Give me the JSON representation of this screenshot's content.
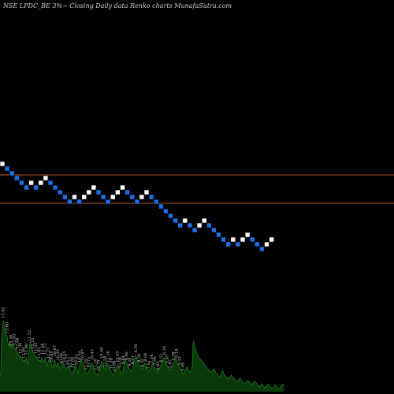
{
  "title": "NSE LPDC_BE 3%~  Closing Daily data  Renko  charts MunafaSutra.com",
  "colors": {
    "background": "#000000",
    "up_brick": "#ffffff",
    "down_brick": "#1e6fe6",
    "brick_border": "#000000",
    "level_line": "#b35a14",
    "volume_fill": "#0a3a0a",
    "volume_line": "#1f7a1f",
    "text": "#cfcfcf"
  },
  "chart_data": [
    {
      "type": "renko",
      "title": "NSE LPDC_BE 3%~  Closing Daily data  Renko  charts MunafaSutra.com",
      "xlabel": "",
      "ylabel": "",
      "grid": false,
      "brick_size": "3%",
      "reference_lines": 2,
      "bricks": [
        {
          "i": 0,
          "level": 26,
          "dir": "up"
        },
        {
          "i": 1,
          "level": 25,
          "dir": "down"
        },
        {
          "i": 2,
          "level": 24,
          "dir": "down"
        },
        {
          "i": 3,
          "level": 23,
          "dir": "down"
        },
        {
          "i": 4,
          "level": 22,
          "dir": "down"
        },
        {
          "i": 5,
          "level": 21,
          "dir": "down"
        },
        {
          "i": 6,
          "level": 22,
          "dir": "up"
        },
        {
          "i": 7,
          "level": 21,
          "dir": "down"
        },
        {
          "i": 8,
          "level": 22,
          "dir": "up"
        },
        {
          "i": 9,
          "level": 23,
          "dir": "up"
        },
        {
          "i": 10,
          "level": 22,
          "dir": "down"
        },
        {
          "i": 11,
          "level": 21,
          "dir": "down"
        },
        {
          "i": 12,
          "level": 20,
          "dir": "down"
        },
        {
          "i": 13,
          "level": 19,
          "dir": "down"
        },
        {
          "i": 14,
          "level": 18,
          "dir": "down"
        },
        {
          "i": 15,
          "level": 19,
          "dir": "up"
        },
        {
          "i": 16,
          "level": 18,
          "dir": "down"
        },
        {
          "i": 17,
          "level": 19,
          "dir": "up"
        },
        {
          "i": 18,
          "level": 20,
          "dir": "up"
        },
        {
          "i": 19,
          "level": 21,
          "dir": "up"
        },
        {
          "i": 20,
          "level": 20,
          "dir": "down"
        },
        {
          "i": 21,
          "level": 19,
          "dir": "down"
        },
        {
          "i": 22,
          "level": 18,
          "dir": "down"
        },
        {
          "i": 23,
          "level": 19,
          "dir": "up"
        },
        {
          "i": 24,
          "level": 20,
          "dir": "up"
        },
        {
          "i": 25,
          "level": 21,
          "dir": "up"
        },
        {
          "i": 26,
          "level": 20,
          "dir": "down"
        },
        {
          "i": 27,
          "level": 19,
          "dir": "down"
        },
        {
          "i": 28,
          "level": 18,
          "dir": "down"
        },
        {
          "i": 29,
          "level": 19,
          "dir": "up"
        },
        {
          "i": 30,
          "level": 20,
          "dir": "up"
        },
        {
          "i": 31,
          "level": 19,
          "dir": "down"
        },
        {
          "i": 32,
          "level": 18,
          "dir": "down"
        },
        {
          "i": 33,
          "level": 17,
          "dir": "down"
        },
        {
          "i": 34,
          "level": 16,
          "dir": "down"
        },
        {
          "i": 35,
          "level": 15,
          "dir": "down"
        },
        {
          "i": 36,
          "level": 14,
          "dir": "down"
        },
        {
          "i": 37,
          "level": 13,
          "dir": "down"
        },
        {
          "i": 38,
          "level": 14,
          "dir": "up"
        },
        {
          "i": 39,
          "level": 13,
          "dir": "down"
        },
        {
          "i": 40,
          "level": 12,
          "dir": "down"
        },
        {
          "i": 41,
          "level": 13,
          "dir": "up"
        },
        {
          "i": 42,
          "level": 14,
          "dir": "up"
        },
        {
          "i": 43,
          "level": 13,
          "dir": "down"
        },
        {
          "i": 44,
          "level": 12,
          "dir": "down"
        },
        {
          "i": 45,
          "level": 11,
          "dir": "down"
        },
        {
          "i": 46,
          "level": 10,
          "dir": "down"
        },
        {
          "i": 47,
          "level": 9,
          "dir": "down"
        },
        {
          "i": 48,
          "level": 10,
          "dir": "up"
        },
        {
          "i": 49,
          "level": 9,
          "dir": "down"
        },
        {
          "i": 50,
          "level": 10,
          "dir": "up"
        },
        {
          "i": 51,
          "level": 11,
          "dir": "up"
        },
        {
          "i": 52,
          "level": 10,
          "dir": "down"
        },
        {
          "i": 53,
          "level": 9,
          "dir": "down"
        },
        {
          "i": 54,
          "level": 8,
          "dir": "down"
        },
        {
          "i": 55,
          "level": 9,
          "dir": "up"
        },
        {
          "i": 56,
          "level": 10,
          "dir": "up"
        }
      ],
      "volume": [
        17,
        19,
        55,
        64,
        74,
        72,
        69,
        61,
        60,
        58,
        52,
        48,
        50,
        52,
        45,
        48,
        47,
        50,
        46,
        45,
        44,
        46,
        42,
        40,
        38,
        36,
        37,
        35,
        34,
        33,
        32,
        33,
        31,
        34,
        36,
        30,
        28,
        40,
        50,
        52,
        48,
        45,
        42,
        40,
        38,
        36,
        37,
        35,
        34,
        33,
        32,
        33,
        31,
        34,
        36,
        32,
        30,
        32,
        36,
        28,
        26,
        30,
        32,
        34,
        36,
        30,
        28,
        26,
        24,
        30,
        34,
        28,
        26,
        27,
        30,
        28,
        25,
        24,
        26,
        29,
        31,
        30,
        28,
        26,
        24,
        22,
        25,
        26,
        27,
        25,
        22,
        20,
        19,
        20,
        22,
        24,
        26,
        28,
        25,
        21,
        19,
        24,
        28,
        32,
        34,
        32,
        30,
        28,
        25,
        22,
        20,
        18,
        19,
        20,
        22,
        24,
        26,
        28,
        30,
        27,
        24,
        22,
        20,
        19,
        18,
        17,
        19,
        22,
        25,
        28,
        32,
        29,
        27,
        25,
        23,
        24,
        26,
        30,
        28,
        26,
        24,
        23,
        21,
        20,
        18,
        17,
        18,
        20,
        22,
        25,
        28,
        27,
        26,
        24,
        22,
        20,
        19,
        21,
        26,
        30,
        34,
        32,
        30,
        28,
        26,
        25,
        24,
        22,
        21,
        22,
        26,
        30,
        33,
        36,
        38,
        35,
        32,
        30,
        28,
        26,
        25,
        24,
        23,
        24,
        27,
        30,
        29,
        27,
        24,
        22,
        21,
        22,
        23,
        25,
        27,
        30,
        29,
        27,
        25,
        23,
        22,
        21,
        20,
        22,
        24,
        26,
        28,
        30,
        32,
        34,
        36,
        33,
        31,
        29,
        27,
        25,
        24,
        23,
        22,
        24,
        26,
        28,
        30,
        32,
        34,
        36,
        33,
        31,
        29,
        27,
        25,
        24,
        22,
        21,
        19,
        18,
        20,
        22,
        24,
        26,
        25,
        23,
        21,
        20,
        22,
        24,
        26,
        50,
        52,
        48,
        44,
        42,
        40,
        38,
        36,
        35,
        34,
        33,
        32,
        31,
        30,
        29,
        28,
        27,
        26,
        25,
        24,
        23,
        22,
        21,
        20,
        21,
        22,
        23,
        24,
        22,
        20,
        19,
        18,
        17,
        16,
        15,
        17,
        19,
        21,
        22,
        20,
        18,
        17,
        16,
        15,
        14,
        13,
        14,
        15,
        16,
        17,
        16,
        15,
        14,
        13,
        12,
        11,
        10,
        11,
        12,
        13,
        14,
        13,
        12,
        11,
        10,
        9,
        8,
        9,
        10,
        11,
        12,
        11,
        10,
        9,
        8,
        7,
        8,
        9,
        10,
        11,
        10,
        9,
        8,
        7,
        6,
        5,
        6,
        7,
        8,
        7,
        6,
        5,
        4,
        5,
        6,
        7,
        8,
        7,
        6,
        5,
        4,
        3,
        4,
        5,
        6,
        7,
        6,
        5,
        4,
        3,
        3,
        4,
        5,
        6,
        7,
        8,
        6
      ],
      "volume_labels": [
        {
          "i": 4,
          "text": "13.92"
        },
        {
          "i": 9,
          "text": "13.60"
        },
        {
          "i": 14,
          "text": "13.36"
        },
        {
          "i": 18,
          "text": "12.93"
        },
        {
          "i": 22,
          "text": "12.68"
        },
        {
          "i": 26,
          "text": "12.30"
        },
        {
          "i": 30,
          "text": "12.06"
        },
        {
          "i": 34,
          "text": "11.88"
        },
        {
          "i": 38,
          "text": "11.52"
        },
        {
          "i": 42,
          "text": "11.23"
        },
        {
          "i": 46,
          "text": "11.05"
        },
        {
          "i": 50,
          "text": "12.82"
        },
        {
          "i": 54,
          "text": "12.34"
        },
        {
          "i": 58,
          "text": "11.73"
        },
        {
          "i": 62,
          "text": "11.27"
        },
        {
          "i": 66,
          "text": "10.95"
        },
        {
          "i": 70,
          "text": "10.67"
        },
        {
          "i": 74,
          "text": "10.35"
        },
        {
          "i": 78,
          "text": "10.06"
        },
        {
          "i": 82,
          "text": "10.25"
        },
        {
          "i": 86,
          "text": "10.77"
        },
        {
          "i": 90,
          "text": "10.33"
        },
        {
          "i": 94,
          "text": "11.03"
        },
        {
          "i": 98,
          "text": "10.62"
        },
        {
          "i": 102,
          "text": "10.34"
        },
        {
          "i": 106,
          "text": "10.87"
        },
        {
          "i": 110,
          "text": "11.35"
        },
        {
          "i": 114,
          "text": "10.73"
        },
        {
          "i": 118,
          "text": "10.45"
        },
        {
          "i": 122,
          "text": "11.10"
        },
        {
          "i": 126,
          "text": "10.79"
        },
        {
          "i": 130,
          "text": "10.48"
        },
        {
          "i": 134,
          "text": "12.58"
        },
        {
          "i": 138,
          "text": "12.26"
        },
        {
          "i": 142,
          "text": "11.38"
        },
        {
          "i": 146,
          "text": "10.88"
        },
        {
          "i": 150,
          "text": "10.45"
        },
        {
          "i": 154,
          "text": "10.04"
        },
        {
          "i": 158,
          "text": "9.84"
        },
        {
          "i": 162,
          "text": "9.46"
        },
        {
          "i": 166,
          "text": "9.29"
        },
        {
          "i": 170,
          "text": "9.01"
        },
        {
          "i": 174,
          "text": "8.76"
        },
        {
          "i": 178,
          "text": "8.56"
        },
        {
          "i": 182,
          "text": "8.32"
        },
        {
          "i": 186,
          "text": "8.06"
        },
        {
          "i": 190,
          "text": "7.62"
        },
        {
          "i": 194,
          "text": "7.34"
        },
        {
          "i": 198,
          "text": "7.06"
        },
        {
          "i": 202,
          "text": "6.83"
        },
        {
          "i": 206,
          "text": "6.52"
        },
        {
          "i": 210,
          "text": "6.26"
        },
        {
          "i": 214,
          "text": "5.85"
        },
        {
          "i": 218,
          "text": "5.62"
        },
        {
          "i": 222,
          "text": "5.38"
        },
        {
          "i": 226,
          "text": "5.18"
        },
        {
          "i": 230,
          "text": "5.33"
        },
        {
          "i": 234,
          "text": "5.09"
        }
      ]
    }
  ]
}
